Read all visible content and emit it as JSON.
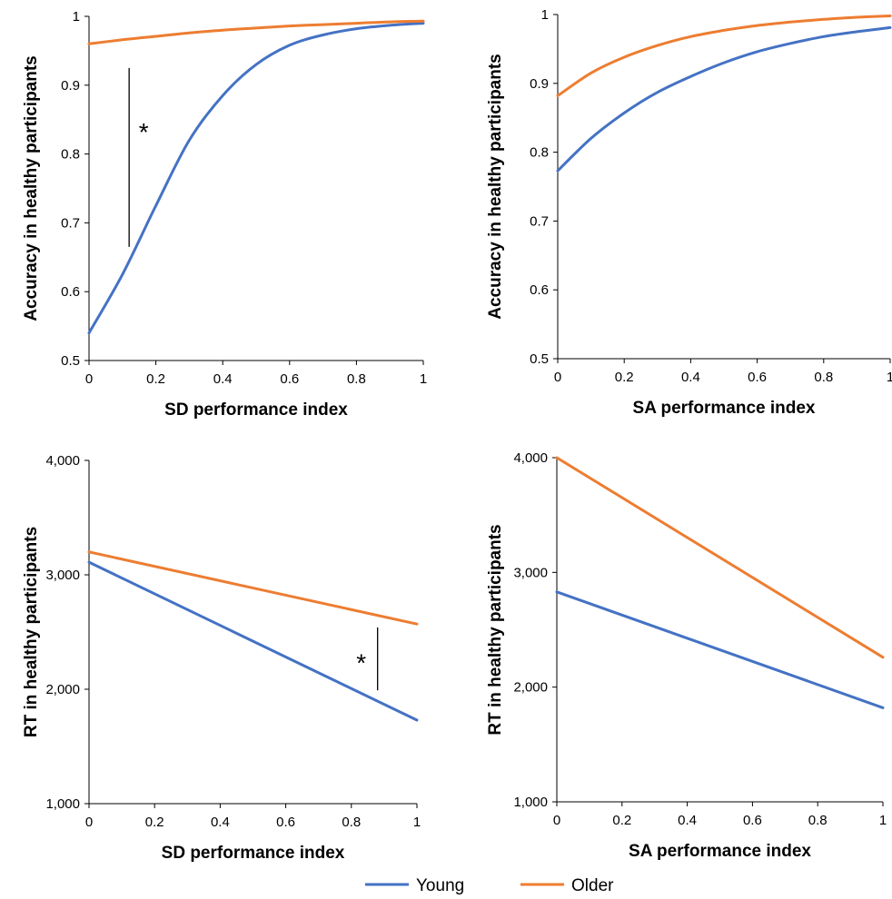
{
  "legend": {
    "items": [
      {
        "label": "Young",
        "color": "#4472C4"
      },
      {
        "label": "Older",
        "color": "#ED7D31"
      }
    ]
  },
  "chart_data": [
    {
      "type": "line",
      "xlabel": "SD performance index",
      "ylabel": "Accuracy in healthy participants",
      "xlim": [
        0,
        1
      ],
      "ylim": [
        0.5,
        1
      ],
      "x_ticks": [
        "0",
        "0.2",
        "0.4",
        "0.6",
        "0.8",
        "1"
      ],
      "y_ticks": [
        "0.5",
        "0.6",
        "0.7",
        "0.8",
        "0.9",
        "1"
      ],
      "x": [
        0,
        0.1,
        0.2,
        0.3,
        0.4,
        0.5,
        0.6,
        0.7,
        0.8,
        0.9,
        1
      ],
      "series": [
        {
          "name": "Young",
          "values": [
            0.54,
            0.625,
            0.725,
            0.82,
            0.885,
            0.93,
            0.958,
            0.973,
            0.982,
            0.987,
            0.99
          ],
          "color": "#4472C4"
        },
        {
          "name": "Older",
          "values": [
            0.96,
            0.966,
            0.971,
            0.976,
            0.98,
            0.983,
            0.986,
            0.988,
            0.99,
            0.992,
            0.993
          ],
          "color": "#ED7D31"
        }
      ],
      "annotations": [
        {
          "text": "*",
          "x": 0.12,
          "y_from": 0.665,
          "y_to": 0.925
        }
      ]
    },
    {
      "type": "line",
      "xlabel": "SA performance index",
      "ylabel": "Accuracy in healthy participants",
      "xlim": [
        0,
        1
      ],
      "ylim": [
        0.5,
        1
      ],
      "x_ticks": [
        "0",
        "0.2",
        "0.4",
        "0.6",
        "0.8",
        "1"
      ],
      "y_ticks": [
        "0.5",
        "0.6",
        "0.7",
        "0.8",
        "0.9",
        "1"
      ],
      "x": [
        0,
        0.1,
        0.2,
        0.3,
        0.4,
        0.5,
        0.6,
        0.7,
        0.8,
        0.9,
        1
      ],
      "series": [
        {
          "name": "Young",
          "values": [
            0.773,
            0.82,
            0.857,
            0.887,
            0.91,
            0.93,
            0.946,
            0.958,
            0.968,
            0.975,
            0.981
          ],
          "color": "#4472C4"
        },
        {
          "name": "Older",
          "values": [
            0.882,
            0.915,
            0.938,
            0.955,
            0.968,
            0.977,
            0.984,
            0.989,
            0.993,
            0.996,
            0.998
          ],
          "color": "#ED7D31"
        }
      ],
      "annotations": []
    },
    {
      "type": "line",
      "xlabel": "SD performance index",
      "ylabel": "RT in healthy participants",
      "xlim": [
        0,
        1
      ],
      "ylim": [
        1000,
        4000
      ],
      "x_ticks": [
        "0",
        "0.2",
        "0.4",
        "0.6",
        "0.8",
        "1"
      ],
      "y_ticks": [
        "1,000",
        "2,000",
        "3,000",
        "4,000"
      ],
      "x": [
        0,
        1
      ],
      "series": [
        {
          "name": "Young",
          "values": [
            3110,
            1730
          ],
          "color": "#4472C4"
        },
        {
          "name": "Older",
          "values": [
            3200,
            2570
          ],
          "color": "#ED7D31"
        }
      ],
      "annotations": [
        {
          "text": "*",
          "x": 0.88,
          "y_from": 1990,
          "y_to": 2540
        }
      ]
    },
    {
      "type": "line",
      "xlabel": "SA performance index",
      "ylabel": "RT in healthy participants",
      "xlim": [
        0,
        1
      ],
      "ylim": [
        1000,
        4000
      ],
      "x_ticks": [
        "0",
        "0.2",
        "0.4",
        "0.6",
        "0.8",
        "1"
      ],
      "y_ticks": [
        "1,000",
        "2,000",
        "3,000",
        "4,000"
      ],
      "x": [
        0,
        1
      ],
      "series": [
        {
          "name": "Young",
          "values": [
            2830,
            1820
          ],
          "color": "#4472C4"
        },
        {
          "name": "Older",
          "values": [
            4000,
            2260
          ],
          "color": "#ED7D31"
        }
      ],
      "annotations": []
    }
  ]
}
